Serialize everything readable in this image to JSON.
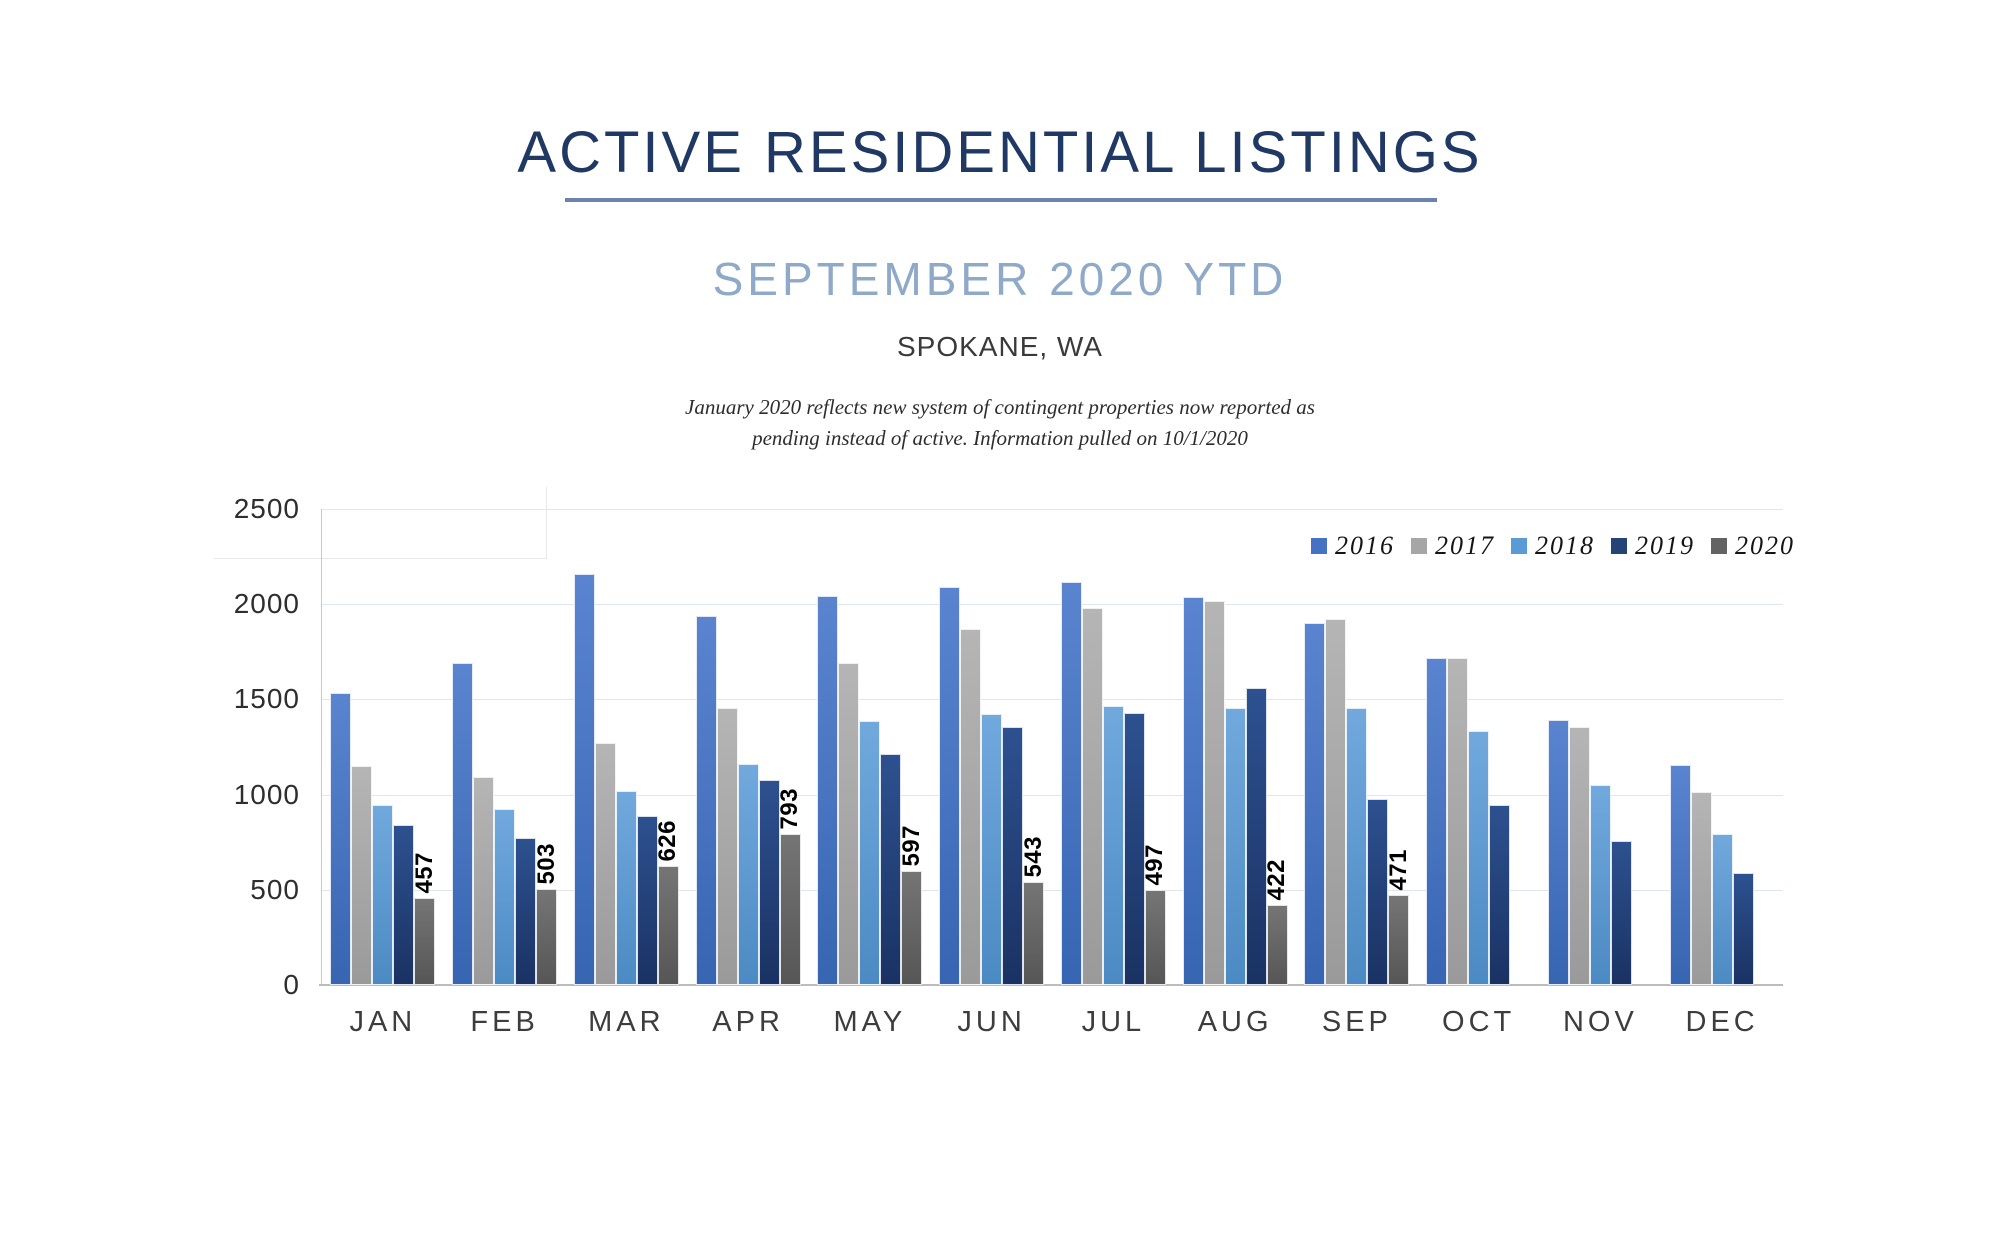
{
  "header": {
    "title": "ACTIVE RESIDENTIAL LISTINGS",
    "subtitle": "SEPTEMBER 2020 YTD",
    "location": "SPOKANE, WA",
    "note_line1": "January 2020 reflects new system of contingent properties now reported as",
    "note_line2": "pending instead of active.  Information pulled on 10/1/2020"
  },
  "chart_data": {
    "type": "bar",
    "title": "ACTIVE RESIDENTIAL LISTINGS",
    "subtitle": "SEPTEMBER 2020 YTD",
    "xlabel": "",
    "ylabel": "",
    "ylim": [
      0,
      2500
    ],
    "y_ticks": [
      0,
      500,
      1000,
      1500,
      2000,
      2500
    ],
    "grid": true,
    "legend_position": "top-right",
    "categories": [
      "JAN",
      "FEB",
      "MAR",
      "APR",
      "MAY",
      "JUN",
      "JUL",
      "AUG",
      "SEP",
      "OCT",
      "NOV",
      "DEC"
    ],
    "series": [
      {
        "name": "2016",
        "color": "#4472C4",
        "color_top": "#5A84CF",
        "color_bottom": "#3765B2",
        "values": [
          1535,
          1690,
          2160,
          1940,
          2045,
          2090,
          2115,
          2040,
          1900,
          1715,
          1390,
          1155
        ]
      },
      {
        "name": "2017",
        "color": "#A6A6A6",
        "color_top": "#B5B5B5",
        "color_bottom": "#9A9A9A",
        "values": [
          1150,
          1095,
          1270,
          1455,
          1690,
          1870,
          1980,
          2015,
          1920,
          1715,
          1355,
          1015
        ]
      },
      {
        "name": "2018",
        "color": "#5B9BD5",
        "color_top": "#71A9DD",
        "color_bottom": "#4C8AC3",
        "values": [
          945,
          925,
          1020,
          1160,
          1385,
          1425,
          1465,
          1455,
          1455,
          1335,
          1050,
          795
        ]
      },
      {
        "name": "2019",
        "color": "#244478",
        "color_top": "#2D5190",
        "color_bottom": "#1A3263",
        "values": [
          840,
          770,
          890,
          1075,
          1215,
          1355,
          1430,
          1560,
          975,
          945,
          755,
          590
        ]
      },
      {
        "name": "2020",
        "color": "#636363",
        "color_top": "#757575",
        "color_bottom": "#565656",
        "data_labels": true,
        "values": [
          457,
          503,
          626,
          793,
          597,
          543,
          497,
          422,
          471,
          null,
          null,
          null
        ]
      }
    ]
  }
}
